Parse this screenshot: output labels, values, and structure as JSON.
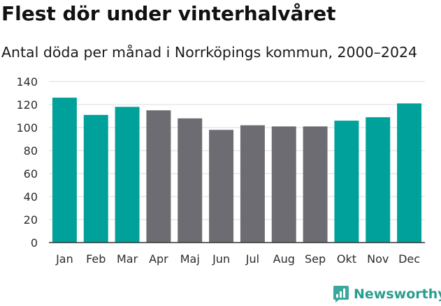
{
  "title": "Flest dör under vinterhalvåret",
  "subtitle": "Antal döda per månad i Norrköpings kommun, 2000–2024",
  "brand": {
    "name": "Newsworthy"
  },
  "colors": {
    "winter": "#00a19a",
    "summer": "#6d6c73",
    "grid": "#dcdcdc",
    "axis": "#333333"
  },
  "chart_data": {
    "type": "bar",
    "title": "Flest dör under vinterhalvåret",
    "subtitle": "Antal döda per månad i Norrköpings kommun, 2000–2024",
    "xlabel": "",
    "ylabel": "",
    "ylim": [
      0,
      140
    ],
    "yticks": [
      0,
      20,
      40,
      60,
      80,
      100,
      120,
      140
    ],
    "grid": true,
    "categories": [
      "Jan",
      "Feb",
      "Mar",
      "Apr",
      "Maj",
      "Jun",
      "Jul",
      "Aug",
      "Sep",
      "Okt",
      "Nov",
      "Dec"
    ],
    "values": [
      126,
      111,
      118,
      115,
      108,
      98,
      102,
      101,
      101,
      106,
      109,
      121
    ],
    "highlight": [
      true,
      true,
      true,
      false,
      false,
      false,
      false,
      false,
      false,
      true,
      true,
      true
    ]
  }
}
